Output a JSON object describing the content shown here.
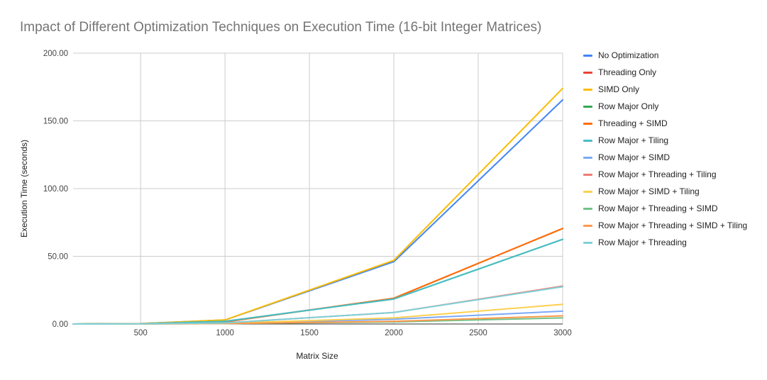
{
  "chart_data": {
    "type": "line",
    "title": "Impact of Different Optimization Techniques on Execution Time (16-bit Integer Matrices)",
    "xlabel": "Matrix Size",
    "ylabel": "Execution Time (seconds)",
    "xlim": [
      100,
      3000
    ],
    "ylim": [
      0,
      200
    ],
    "x_ticks": [
      "500",
      "1000",
      "1500",
      "2000",
      "2500",
      "3000"
    ],
    "y_ticks": [
      "0.00",
      "50.00",
      "100.00",
      "150.00",
      "200.00"
    ],
    "grid": true,
    "legend_position": "right",
    "x": [
      100,
      500,
      1000,
      2000,
      3000
    ],
    "series": [
      {
        "name": "No Optimization",
        "color": "#4285F4",
        "values": [
          0.0,
          0.3,
          3.0,
          46.0,
          165.5
        ]
      },
      {
        "name": "Threading Only",
        "color": "#EA4335",
        "values": [
          0.0,
          0.2,
          1.5,
          19.0,
          70.5
        ]
      },
      {
        "name": "SIMD Only",
        "color": "#FBBC04",
        "values": [
          0.0,
          0.3,
          3.0,
          47.0,
          174.0
        ]
      },
      {
        "name": "Row Major Only",
        "color": "#34A853",
        "values": [
          0.0,
          0.2,
          2.0,
          18.5,
          62.5
        ]
      },
      {
        "name": "Threading + SIMD",
        "color": "#FF6D01",
        "values": [
          0.0,
          0.2,
          1.6,
          19.0,
          70.5
        ]
      },
      {
        "name": "Row Major + Tiling",
        "color": "#46BDC6",
        "values": [
          0.0,
          0.2,
          2.0,
          18.5,
          62.5
        ]
      },
      {
        "name": "Row Major + SIMD",
        "color": "#7BAAF7",
        "values": [
          0.0,
          0.1,
          0.4,
          3.5,
          9.5
        ]
      },
      {
        "name": "Row Major + Threading + Tiling",
        "color": "#F07B72",
        "values": [
          0.0,
          0.1,
          0.8,
          8.5,
          28.0
        ]
      },
      {
        "name": "Row Major + SIMD + Tiling",
        "color": "#FCD04F",
        "values": [
          0.0,
          0.1,
          0.5,
          4.5,
          14.5
        ]
      },
      {
        "name": "Row Major + Threading + SIMD",
        "color": "#71C287",
        "values": [
          0.0,
          0.05,
          0.3,
          1.5,
          4.5
        ]
      },
      {
        "name": "Row Major + Threading + SIMD + Tiling",
        "color": "#FF994D",
        "values": [
          0.0,
          0.05,
          0.3,
          2.0,
          6.0
        ]
      },
      {
        "name": "Row Major + Threading",
        "color": "#7ED1D7",
        "values": [
          0.0,
          0.1,
          0.8,
          8.5,
          27.5
        ]
      }
    ]
  }
}
